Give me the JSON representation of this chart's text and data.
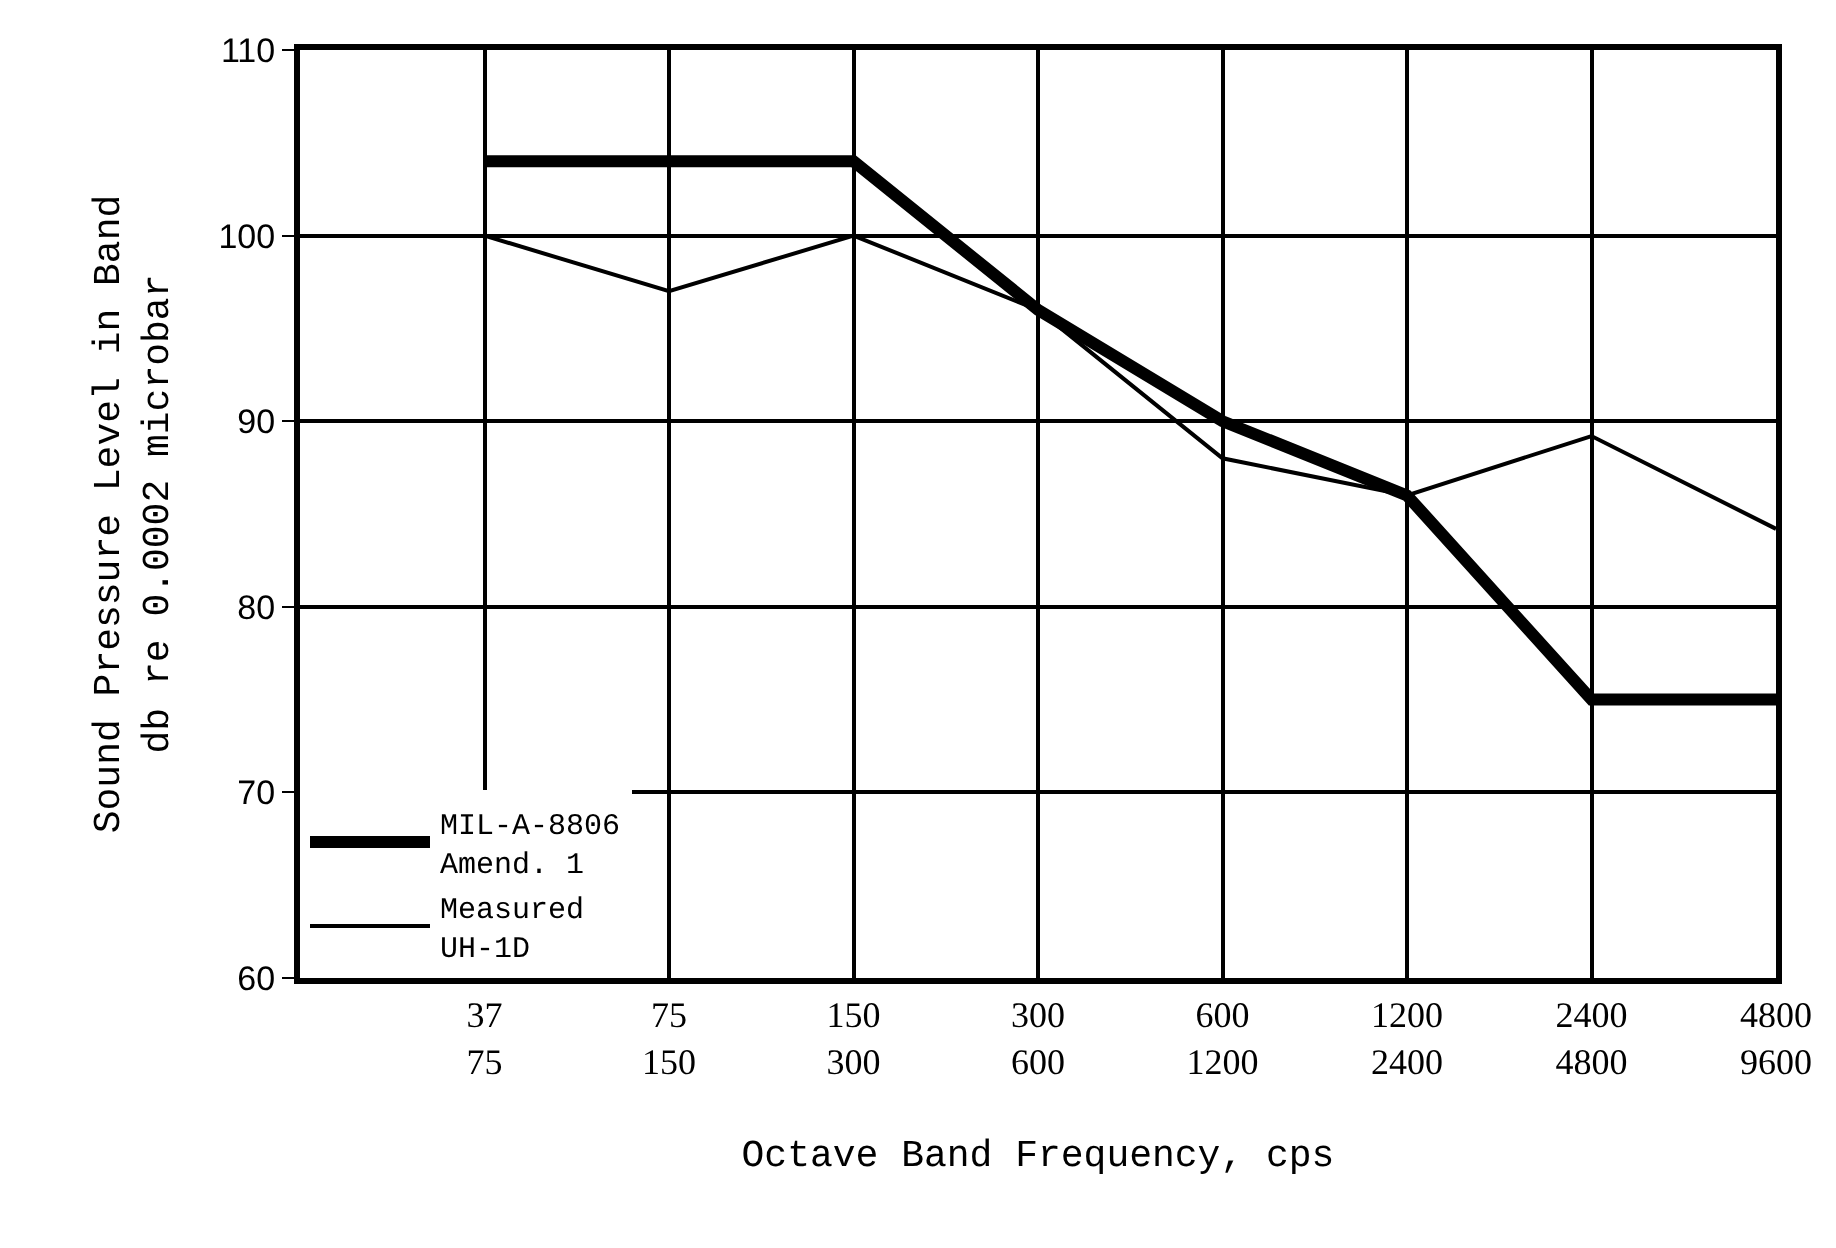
{
  "chart_data": {
    "type": "line",
    "xlabel": "Octave Band Frequency, cps",
    "ylabel": "Sound Pressure Level in Band\ndb re 0.0002 microbar",
    "categories": [
      "37\n75",
      "75\n150",
      "150\n300",
      "300\n600",
      "600\n1200",
      "1200\n2400",
      "2400\n4800",
      "4800\n9600"
    ],
    "series": [
      {
        "name": "MIL-A-8806\nAmend. 1",
        "color": "#000000",
        "values": [
          104,
          104,
          104,
          96,
          90,
          86,
          75,
          75
        ]
      },
      {
        "name": "Measured\nUH-1D",
        "color": "#000000",
        "values": [
          100,
          97,
          100,
          96,
          88,
          86,
          89.2,
          84.2
        ]
      }
    ],
    "ylim": [
      60,
      110
    ],
    "yticks": [
      60,
      70,
      80,
      90,
      100,
      110
    ],
    "grid": true,
    "legend": "bottom left",
    "marker": "none",
    "line_style": "solid"
  }
}
